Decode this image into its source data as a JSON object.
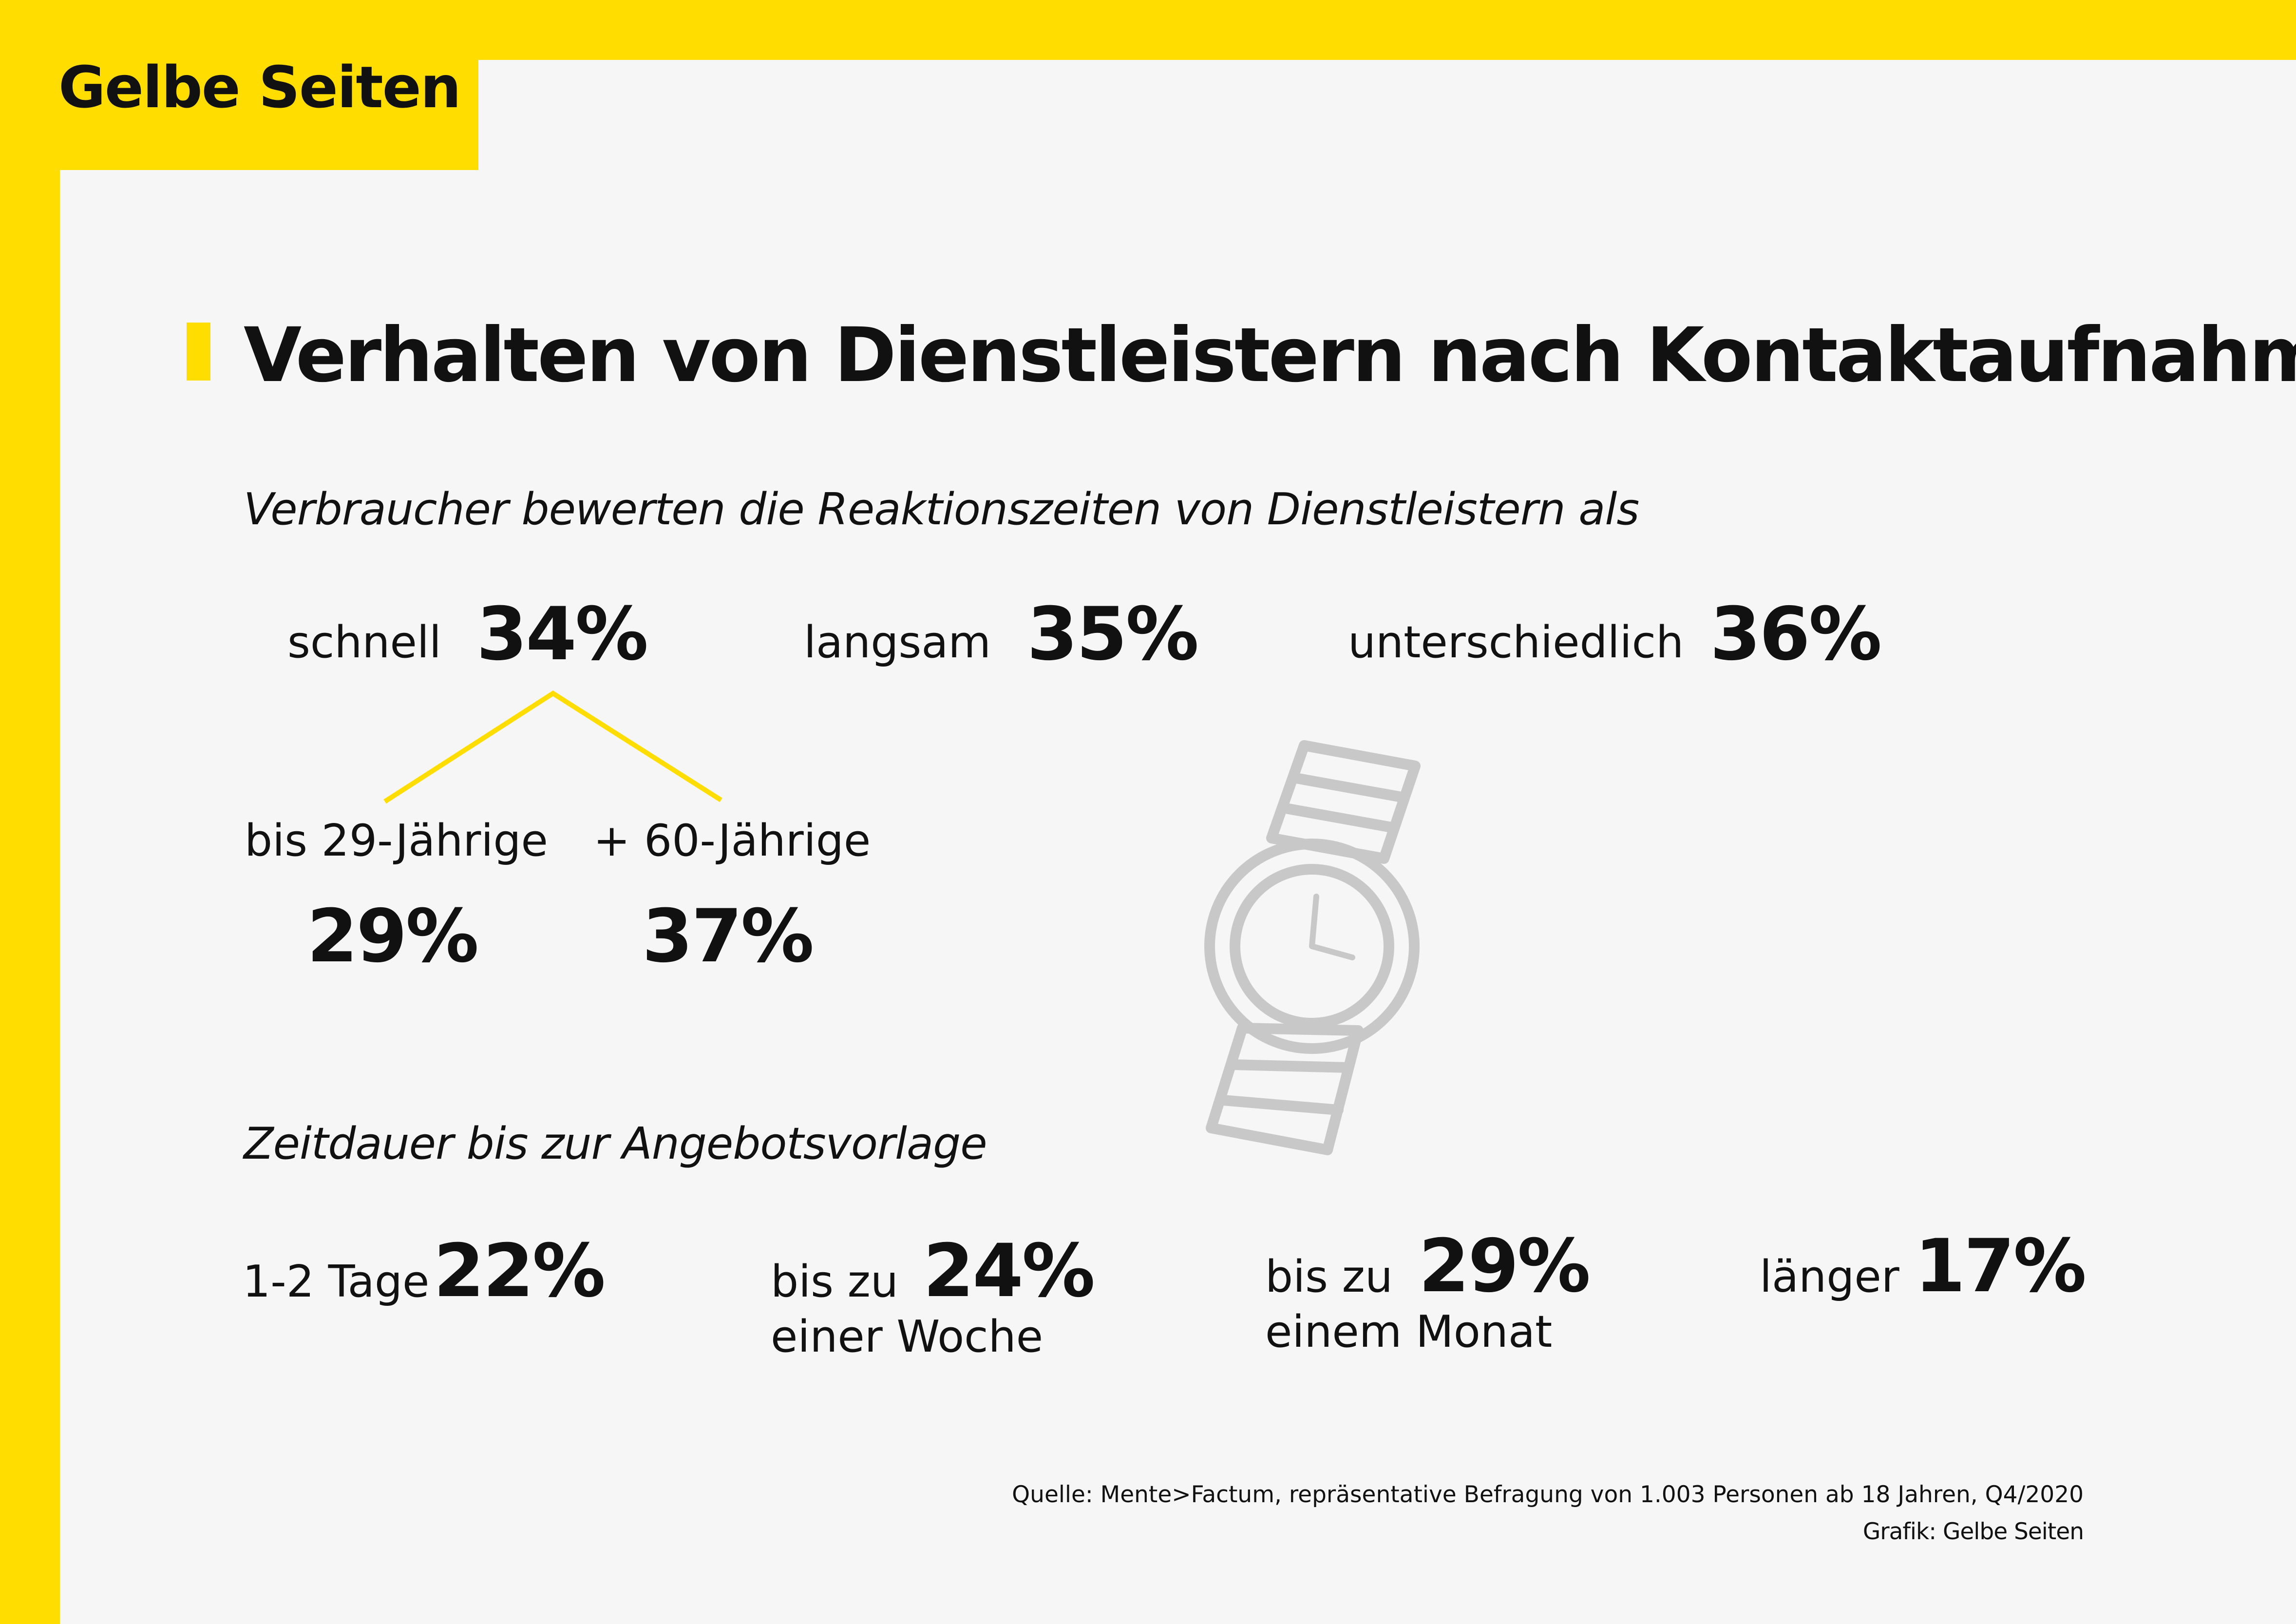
{
  "brand": {
    "logo_text": "Gelbe Seiten",
    "accent_color": "#ffdd00",
    "icon_color": "#c8c8c8"
  },
  "title": "Verhalten von Dienstleistern nach Kontaktaufnahme",
  "reaction": {
    "heading": "Verbraucher bewerten die Reaktionszeiten von Dienstleistern als",
    "items": [
      {
        "label": "schnell",
        "value": "34%"
      },
      {
        "label": "langsam",
        "value": "35%"
      },
      {
        "label": "unterschiedlich",
        "value": "36%"
      }
    ],
    "breakdown": [
      {
        "label": "bis 29-Jährige",
        "value": "29%"
      },
      {
        "label": "+ 60-Jährige",
        "value": "37%"
      }
    ]
  },
  "duration": {
    "heading": "Zeitdauer bis zur Angebotsvorlage",
    "items": [
      {
        "label": "1-2 Tage",
        "label2": "",
        "value": "22%"
      },
      {
        "label": "bis zu",
        "label2": "einer Woche",
        "value": "24%"
      },
      {
        "label": "bis zu",
        "label2": "einem Monat",
        "value": "29%"
      },
      {
        "label": "länger",
        "label2": "",
        "value": "17%"
      }
    ]
  },
  "icons": [
    "watch-icon"
  ],
  "footer": {
    "source": "Quelle: Mente>Factum, repräsentative Befragung von 1.003 Personen ab 18 Jahren, Q4/2020",
    "credit": "Grafik: Gelbe Seiten"
  }
}
